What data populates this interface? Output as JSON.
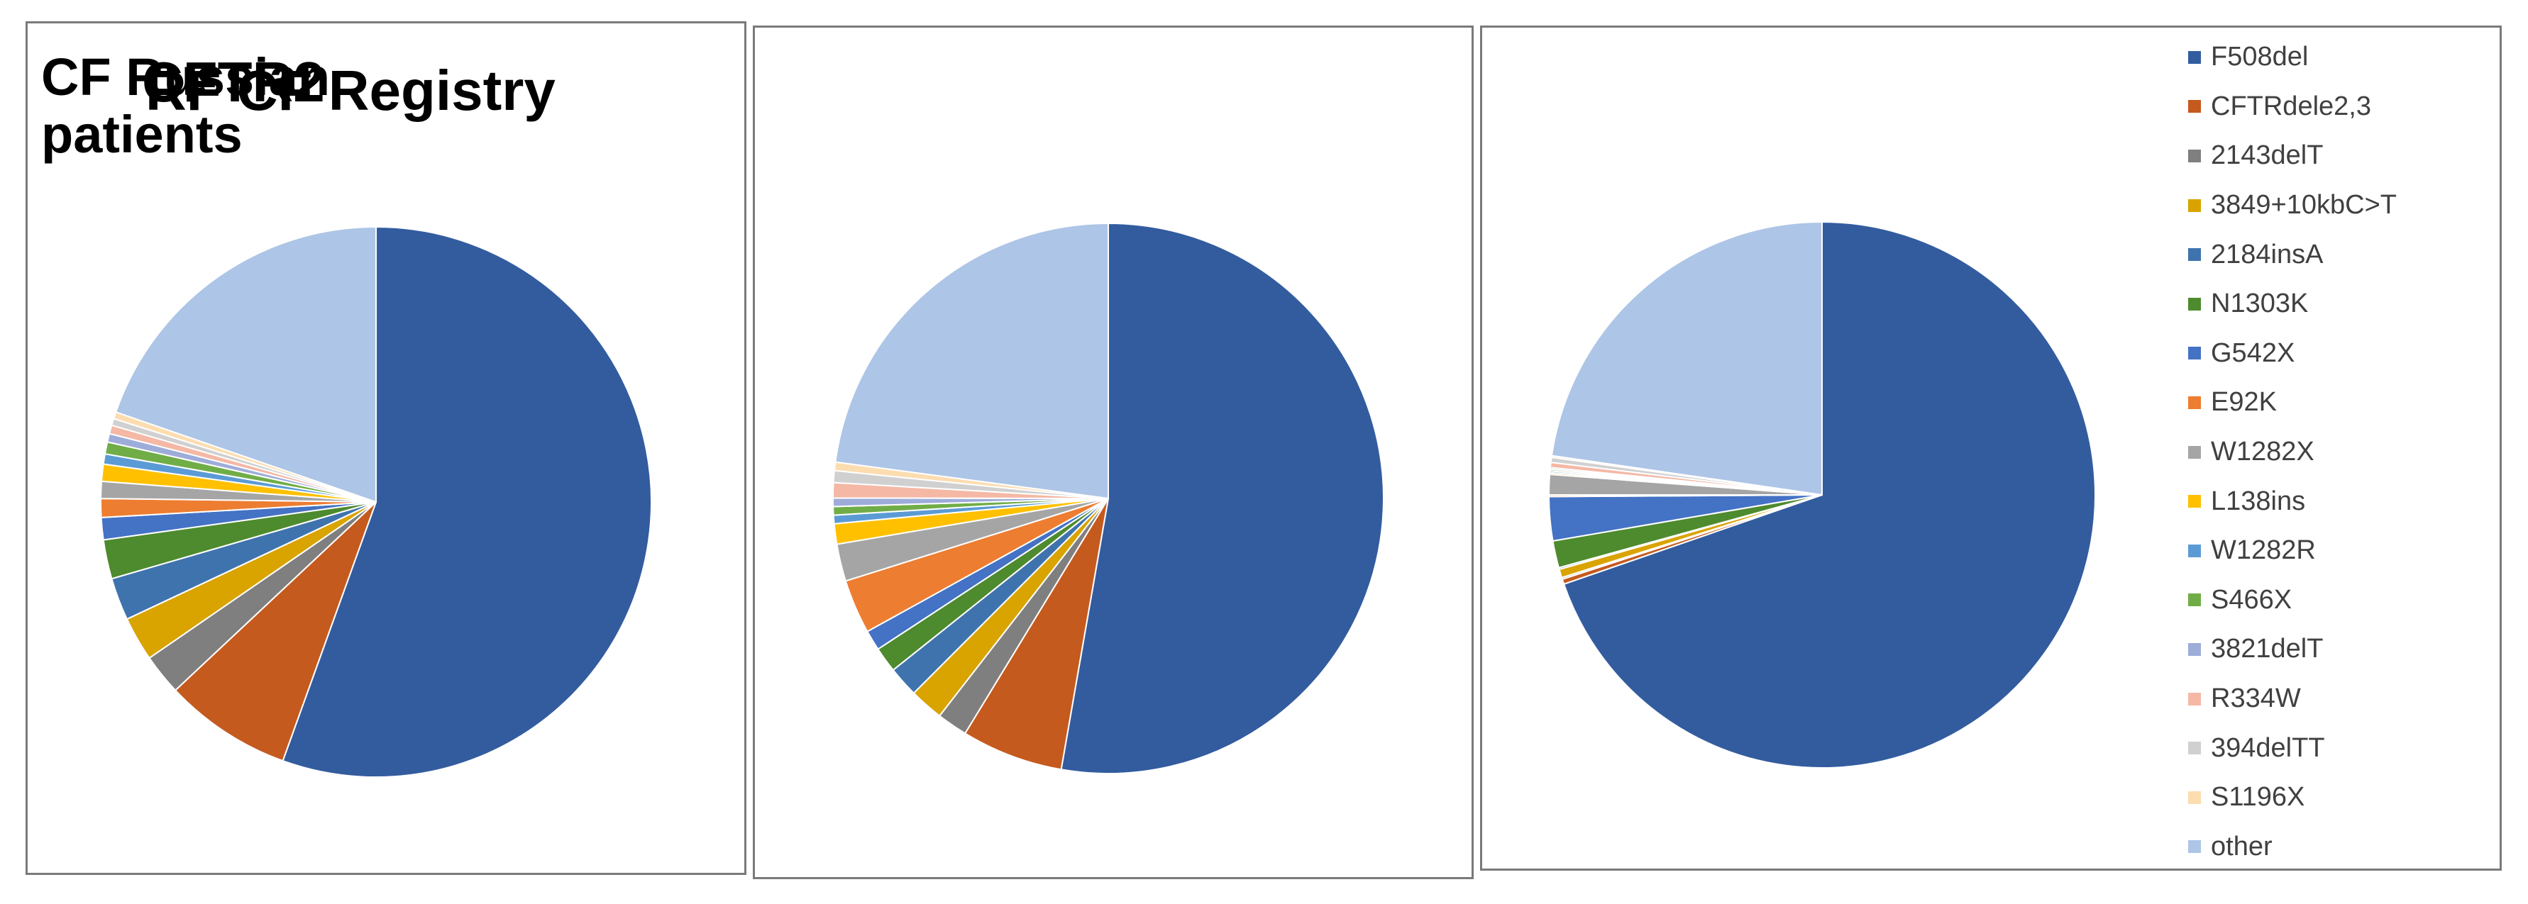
{
  "colors": {
    "F508del": "#335C9F",
    "CFTRdele2,3": "#C55A1E",
    "2143delT": "#7F7F7F",
    "3849+10kbC>T": "#D9A300",
    "2184insA": "#3F73AE",
    "N1303K": "#4E8A2E",
    "G542X": "#4472C4",
    "E92K": "#ED7D31",
    "W1282X": "#A5A5A5",
    "L138ins": "#FFC000",
    "W1282R": "#5B9BD5",
    "S466X": "#70AD47",
    "3821delT": "#9DACD9",
    "R334W": "#F4B8A5",
    "394delTT": "#D0D0D0",
    "S1196X": "#FCDDB0",
    "other": "#ADC5E6"
  },
  "chart_data": [
    {
      "type": "pie",
      "title": "CF Russian patients",
      "categories": [
        "F508del",
        "CFTRdele2,3",
        "2143delT",
        "3849+10kbC>T",
        "2184insA",
        "N1303K",
        "G542X",
        "E92K",
        "W1282X",
        "L138ins",
        "W1282R",
        "S466X",
        "3821delT",
        "R334W",
        "394delTT",
        "S1196X",
        "other"
      ],
      "values": [
        55.5,
        7.5,
        2.4,
        2.6,
        2.5,
        2.3,
        1.3,
        1.1,
        1.0,
        1.0,
        0.6,
        0.7,
        0.5,
        0.5,
        0.4,
        0.4,
        19.7
      ]
    },
    {
      "type": "pie",
      "title": "RF CF Registry",
      "categories": [
        "F508del",
        "CFTRdele2,3",
        "2143delT",
        "3849+10kbC>T",
        "2184insA",
        "N1303K",
        "G542X",
        "E92K",
        "W1282X",
        "L138ins",
        "W1282R",
        "S466X",
        "3821delT",
        "R334W",
        "394delTT",
        "S1196X",
        "other"
      ],
      "values": [
        53.0,
        6.0,
        1.8,
        2.0,
        1.8,
        1.5,
        1.2,
        3.2,
        2.2,
        1.2,
        0.5,
        0.5,
        0.5,
        0.9,
        0.7,
        0.5,
        23.0
      ]
    },
    {
      "type": "pie",
      "title": "CFTR2",
      "categories": [
        "F508del",
        "CFTRdele2,3",
        "2143delT",
        "3849+10kbC>T",
        "2184insA",
        "N1303K",
        "G542X",
        "E92K",
        "W1282X",
        "L138ins",
        "W1282R",
        "S466X",
        "3821delT",
        "R334W",
        "394delTT",
        "S1196X",
        "other"
      ],
      "values": [
        69.7,
        0.3,
        0.1,
        0.5,
        0.1,
        1.6,
        2.6,
        0.1,
        1.2,
        0.1,
        0.1,
        0.1,
        0.1,
        0.3,
        0.3,
        0.1,
        22.7
      ]
    }
  ],
  "legend": {
    "items": [
      "F508del",
      "CFTRdele2,3",
      "2143delT",
      "3849+10kbC>T",
      "2184insA",
      "N1303K",
      "G542X",
      "E92K",
      "W1282X",
      "L138ins",
      "W1282R",
      "S466X",
      "3821delT",
      "R334W",
      "394delTT",
      "S1196X",
      "other"
    ]
  }
}
